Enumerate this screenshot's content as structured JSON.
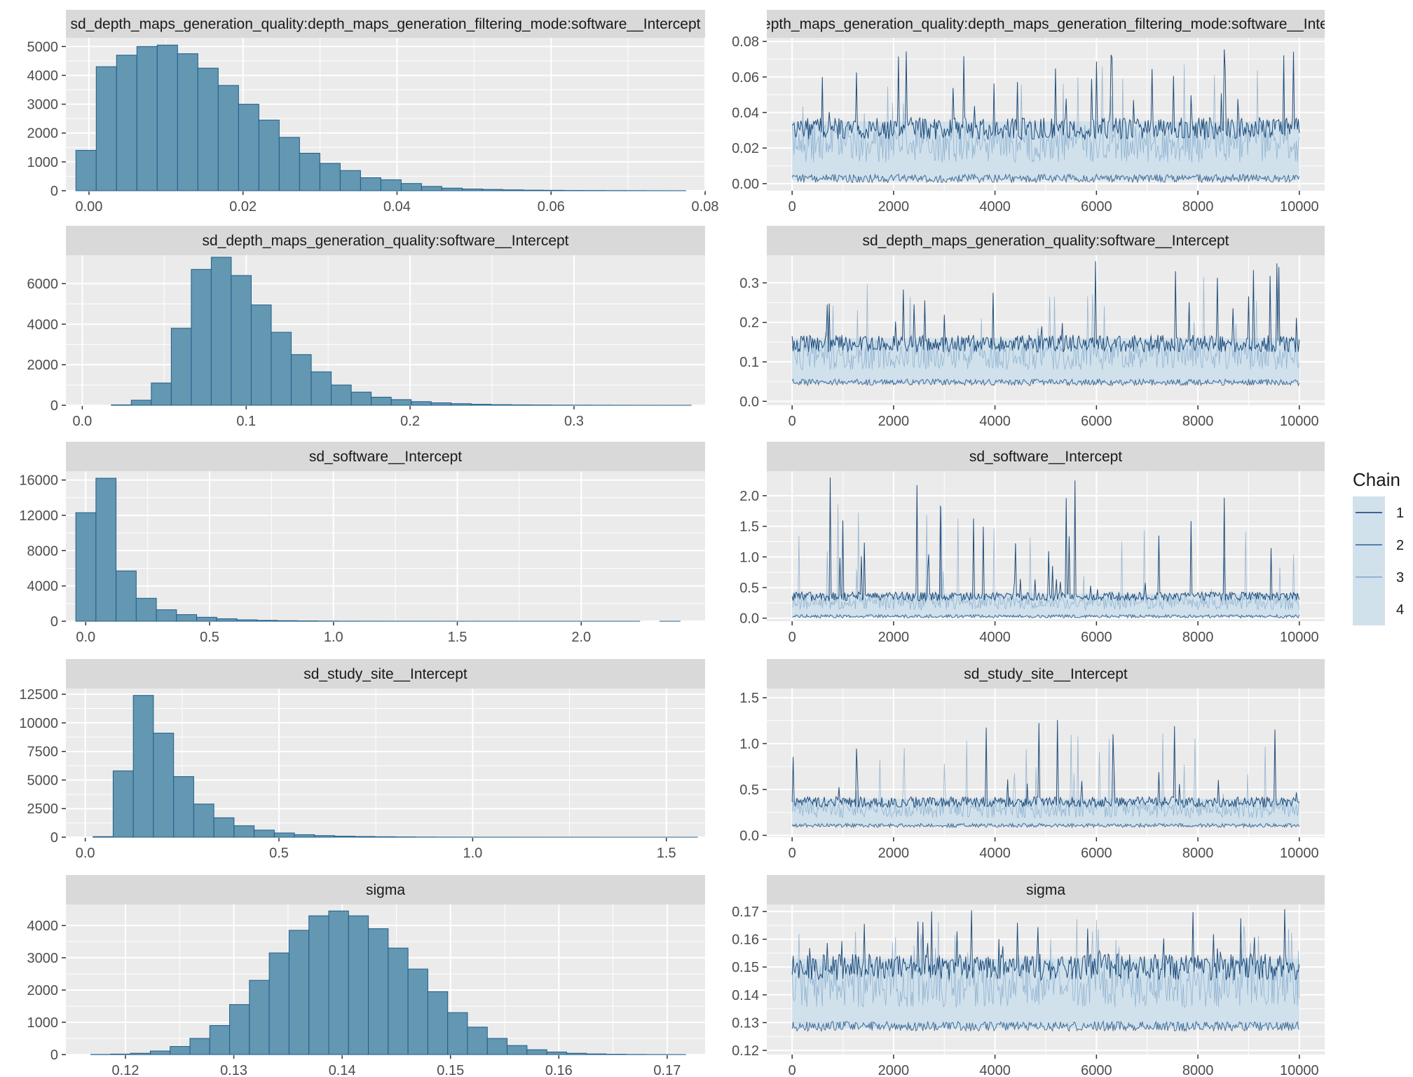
{
  "legend": {
    "title": "Chain",
    "entries": [
      {
        "label": "1",
        "color": "#0b3c6e"
      },
      {
        "label": "2",
        "color": "#2f5f8f"
      },
      {
        "label": "3",
        "color": "#7ea6c9"
      },
      {
        "label": "4",
        "color": "#d1e1ec"
      }
    ]
  },
  "colors": {
    "panel_bg": "#ebebeb",
    "strip_bg": "#d9d9d9",
    "grid": "#ffffff",
    "hist_fill": "#6497b1",
    "hist_stroke": "#1f5d8a",
    "trace_band": "#d1e1ec",
    "trace_dark": "#0b3c6e",
    "trace_mid": "#2f5f8f"
  },
  "chart_data": [
    {
      "type": "bar",
      "panel": "histogram",
      "title": "sd_depth_maps_generation_quality:depth_maps_generation_filtering_mode:software__Intercept",
      "xlim": [
        -0.003,
        0.08
      ],
      "ylim": [
        0,
        5300
      ],
      "x_ticks": [
        0.0,
        0.02,
        0.04,
        0.06,
        0.08
      ],
      "x_tick_labels": [
        "0.00",
        "0.02",
        "0.04",
        "0.06",
        "0.08"
      ],
      "y_ticks": [
        0,
        1000,
        2000,
        3000,
        4000,
        5000
      ],
      "y_tick_labels": [
        "0",
        "1000",
        "2000",
        "3000",
        "4000",
        "5000"
      ],
      "bin_start": -0.0017,
      "bin_width": 0.00264,
      "values": [
        1400,
        4300,
        4700,
        5000,
        5050,
        4750,
        4250,
        3650,
        3000,
        2450,
        1850,
        1300,
        950,
        700,
        450,
        380,
        250,
        150,
        90,
        60,
        45,
        30,
        20,
        15,
        10,
        8,
        6,
        5,
        3,
        2
      ]
    },
    {
      "type": "line",
      "panel": "trace",
      "title": "sd_depth_maps_generation_quality:depth_maps_generation_filtering_mode:software__Intercept",
      "xlim": [
        -500,
        10500
      ],
      "ylim": [
        -0.004,
        0.082
      ],
      "x_ticks": [
        0,
        2000,
        4000,
        6000,
        8000,
        10000
      ],
      "x_tick_labels": [
        "0",
        "2000",
        "4000",
        "6000",
        "8000",
        "10000"
      ],
      "y_ticks": [
        0.0,
        0.02,
        0.04,
        0.06,
        0.08
      ],
      "y_tick_labels": [
        "0.00",
        "0.02",
        "0.04",
        "0.06",
        "0.08"
      ],
      "iterations": 10000,
      "band": [
        0.002,
        0.035
      ],
      "spike_max": 0.076,
      "series": [
        {
          "name": "1"
        },
        {
          "name": "2"
        },
        {
          "name": "3"
        },
        {
          "name": "4"
        }
      ]
    },
    {
      "type": "bar",
      "panel": "histogram",
      "title": "sd_depth_maps_generation_quality:software__Intercept",
      "xlim": [
        -0.01,
        0.38
      ],
      "ylim": [
        0,
        7400
      ],
      "x_ticks": [
        0.0,
        0.1,
        0.2,
        0.3
      ],
      "x_tick_labels": [
        "0.0",
        "0.1",
        "0.2",
        "0.3"
      ],
      "y_ticks": [
        0,
        2000,
        4000,
        6000
      ],
      "y_tick_labels": [
        "0",
        "2000",
        "4000",
        "6000"
      ],
      "bin_start": 0.0055,
      "bin_width": 0.0122,
      "values": [
        0,
        20,
        250,
        1100,
        3800,
        6700,
        7300,
        6400,
        4950,
        3600,
        2500,
        1650,
        1000,
        650,
        400,
        280,
        180,
        120,
        80,
        50,
        30,
        20,
        15,
        10,
        8,
        6,
        4,
        3,
        2,
        2
      ]
    },
    {
      "type": "line",
      "panel": "trace",
      "title": "sd_depth_maps_generation_quality:software__Intercept",
      "xlim": [
        -500,
        10500
      ],
      "ylim": [
        -0.01,
        0.37
      ],
      "x_ticks": [
        0,
        2000,
        4000,
        6000,
        8000,
        10000
      ],
      "x_tick_labels": [
        "0",
        "2000",
        "4000",
        "6000",
        "8000",
        "10000"
      ],
      "y_ticks": [
        0.0,
        0.1,
        0.2,
        0.3
      ],
      "y_tick_labels": [
        "0.0",
        "0.1",
        "0.2",
        "0.3"
      ],
      "iterations": 10000,
      "band": [
        0.045,
        0.16
      ],
      "spike_max": 0.36,
      "series": [
        {
          "name": "1"
        },
        {
          "name": "2"
        },
        {
          "name": "3"
        },
        {
          "name": "4"
        }
      ]
    },
    {
      "type": "bar",
      "panel": "histogram",
      "title": "sd_software__Intercept",
      "xlim": [
        -0.08,
        2.5
      ],
      "ylim": [
        0,
        17000
      ],
      "x_ticks": [
        0.0,
        0.5,
        1.0,
        1.5,
        2.0
      ],
      "x_tick_labels": [
        "0.0",
        "0.5",
        "1.0",
        "1.5",
        "2.0"
      ],
      "y_ticks": [
        0,
        4000,
        8000,
        12000,
        16000
      ],
      "y_tick_labels": [
        "0",
        "4000",
        "8000",
        "12000",
        "16000"
      ],
      "bin_start": -0.04,
      "bin_width": 0.0813,
      "values": [
        12300,
        16200,
        5700,
        2600,
        1300,
        750,
        450,
        280,
        160,
        100,
        60,
        40,
        25,
        15,
        10,
        8,
        6,
        5,
        4,
        3,
        3,
        2,
        2,
        1,
        1,
        1,
        1,
        1,
        0,
        1
      ]
    },
    {
      "type": "line",
      "panel": "trace",
      "title": "sd_software__Intercept",
      "xlim": [
        -500,
        10500
      ],
      "ylim": [
        -0.05,
        2.4
      ],
      "x_ticks": [
        0,
        2000,
        4000,
        6000,
        8000,
        10000
      ],
      "x_tick_labels": [
        "0",
        "2000",
        "4000",
        "6000",
        "8000",
        "10000"
      ],
      "y_ticks": [
        0.0,
        0.5,
        1.0,
        1.5,
        2.0
      ],
      "y_tick_labels": [
        "0.0",
        "0.5",
        "1.0",
        "1.5",
        "2.0"
      ],
      "iterations": 10000,
      "band": [
        0.02,
        0.4
      ],
      "spike_max": 2.3,
      "series": [
        {
          "name": "1"
        },
        {
          "name": "2"
        },
        {
          "name": "3"
        },
        {
          "name": "4"
        }
      ]
    },
    {
      "type": "bar",
      "panel": "histogram",
      "title": "sd_study_site__Intercept",
      "xlim": [
        -0.05,
        1.6
      ],
      "ylim": [
        0,
        13000
      ],
      "x_ticks": [
        0.0,
        0.5,
        1.0,
        1.5
      ],
      "x_tick_labels": [
        "0.0",
        "0.5",
        "1.0",
        "1.5"
      ],
      "y_ticks": [
        0,
        2500,
        5000,
        7500,
        10000,
        12500
      ],
      "y_tick_labels": [
        "0",
        "2500",
        "5000",
        "7500",
        "10000",
        "12500"
      ],
      "bin_start": 0.02,
      "bin_width": 0.052,
      "values": [
        50,
        5800,
        12400,
        9100,
        5300,
        2900,
        1700,
        1000,
        620,
        370,
        220,
        140,
        90,
        60,
        40,
        25,
        15,
        10,
        8,
        6,
        5,
        4,
        3,
        2,
        2,
        1,
        1,
        1,
        1,
        1
      ]
    },
    {
      "type": "line",
      "panel": "trace",
      "title": "sd_study_site__Intercept",
      "xlim": [
        -500,
        10500
      ],
      "ylim": [
        -0.02,
        1.6
      ],
      "x_ticks": [
        0,
        2000,
        4000,
        6000,
        8000,
        10000
      ],
      "x_tick_labels": [
        "0",
        "2000",
        "4000",
        "6000",
        "8000",
        "10000"
      ],
      "y_ticks": [
        0.0,
        0.5,
        1.0,
        1.5
      ],
      "y_tick_labels": [
        "0.0",
        "0.5",
        "1.0",
        "1.5"
      ],
      "iterations": 10000,
      "band": [
        0.1,
        0.4
      ],
      "spike_max": 1.35,
      "series": [
        {
          "name": "1"
        },
        {
          "name": "2"
        },
        {
          "name": "3"
        },
        {
          "name": "4"
        }
      ]
    },
    {
      "type": "bar",
      "panel": "histogram",
      "title": "sigma",
      "xlim": [
        0.1145,
        0.1735
      ],
      "ylim": [
        0,
        4650
      ],
      "x_ticks": [
        0.12,
        0.13,
        0.14,
        0.15,
        0.16,
        0.17
      ],
      "x_tick_labels": [
        "0.12",
        "0.13",
        "0.14",
        "0.15",
        "0.16",
        "0.17"
      ],
      "y_ticks": [
        0,
        1000,
        2000,
        3000,
        4000
      ],
      "y_tick_labels": [
        "0",
        "1000",
        "2000",
        "3000",
        "4000"
      ],
      "bin_start": 0.1168,
      "bin_width": 0.00183,
      "values": [
        5,
        15,
        40,
        110,
        250,
        500,
        900,
        1550,
        2300,
        3150,
        3850,
        4300,
        4450,
        4300,
        3900,
        3300,
        2650,
        1950,
        1300,
        850,
        500,
        280,
        150,
        80,
        40,
        20,
        10,
        5,
        3,
        2
      ]
    },
    {
      "type": "line",
      "panel": "trace",
      "title": "sigma",
      "xlim": [
        -500,
        10500
      ],
      "ylim": [
        0.1185,
        0.1725
      ],
      "x_ticks": [
        0,
        2000,
        4000,
        6000,
        8000,
        10000
      ],
      "x_tick_labels": [
        "0",
        "2000",
        "4000",
        "6000",
        "8000",
        "10000"
      ],
      "y_ticks": [
        0.12,
        0.13,
        0.14,
        0.15,
        0.16,
        0.17
      ],
      "y_tick_labels": [
        "0.12",
        "0.13",
        "0.14",
        "0.15",
        "0.16",
        "0.17"
      ],
      "iterations": 10000,
      "band": [
        0.128,
        0.153
      ],
      "spike_max": 0.171,
      "series": [
        {
          "name": "1"
        },
        {
          "name": "2"
        },
        {
          "name": "3"
        },
        {
          "name": "4"
        }
      ]
    }
  ]
}
